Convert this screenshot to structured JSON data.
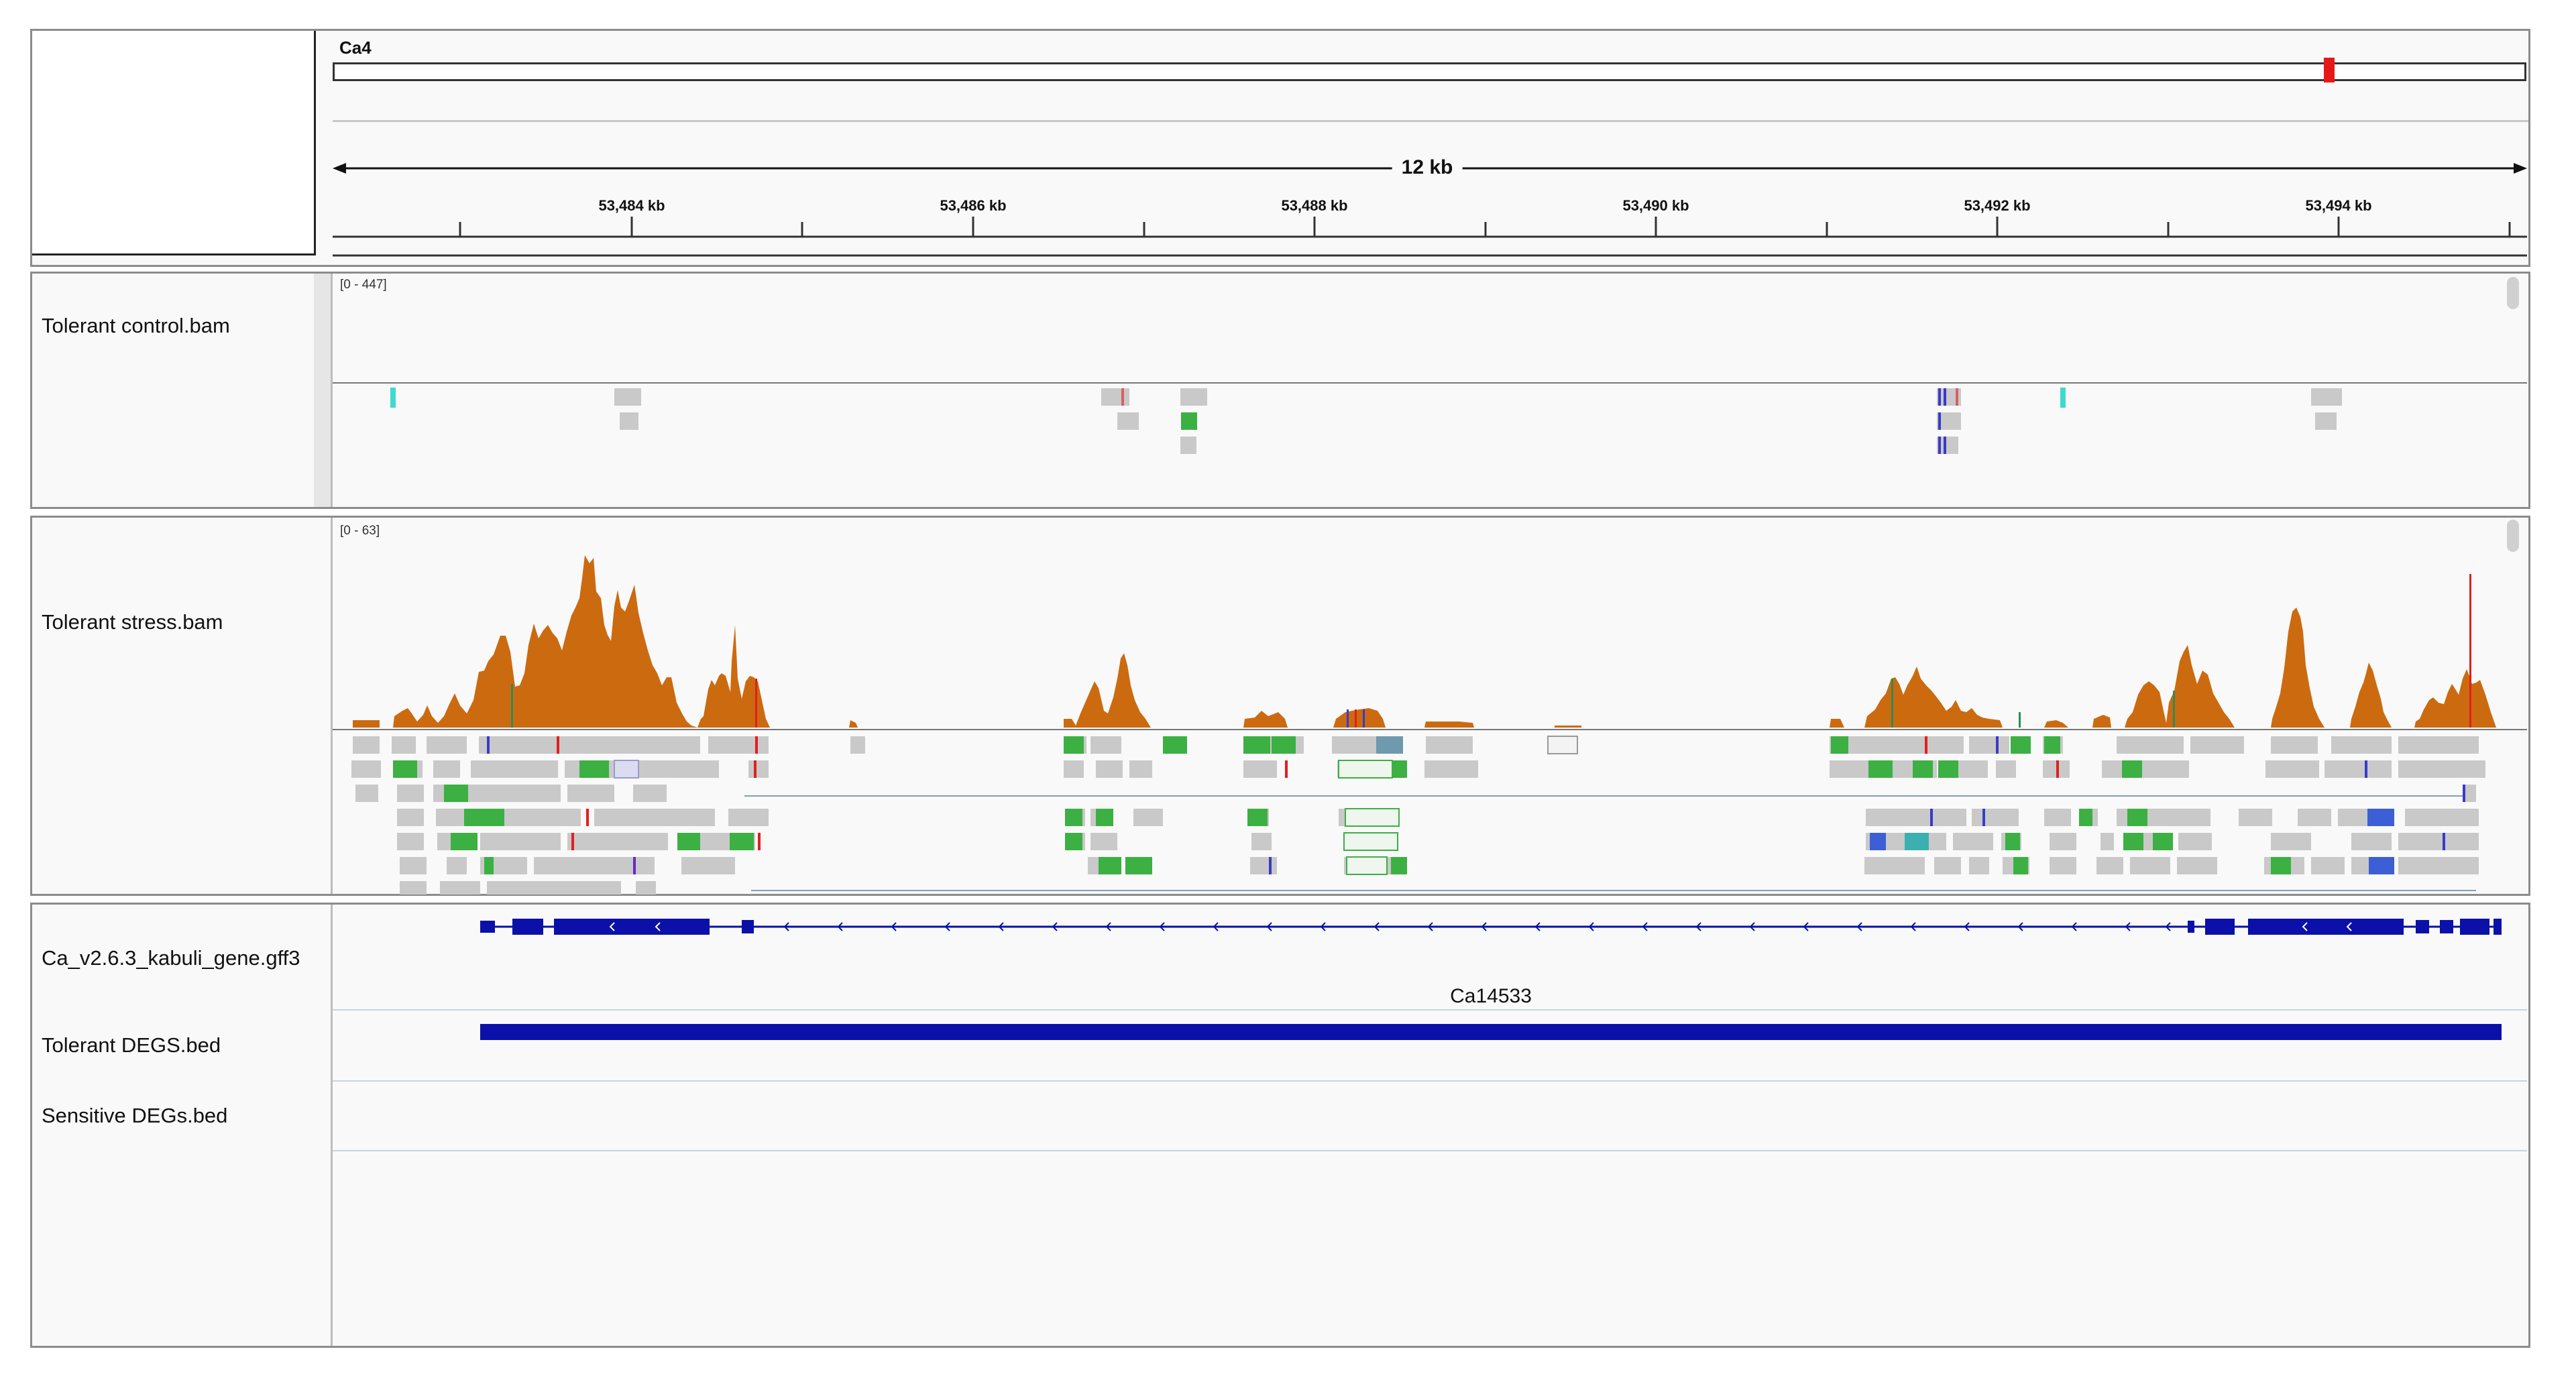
{
  "ruler": {
    "chromosome": "Ca4",
    "span_label": "12 kb",
    "ticks": [
      "53,484 kb",
      "53,486 kb",
      "53,488 kb",
      "53,490 kb",
      "53,492 kb",
      "53,494 kb"
    ]
  },
  "tracks": {
    "control_bam": {
      "name": "Tolerant control.bam",
      "range": "[0 - 447]"
    },
    "stress_bam": {
      "name": "Tolerant stress.bam",
      "range": "[0 - 63]"
    },
    "gene_gff": {
      "name": "Ca_v2.6.3_kabuli_gene.gff3",
      "feature_name": "Ca14533"
    },
    "tolerant_degs": {
      "name": "Tolerant DEGS.bed"
    },
    "sensitive_degs": {
      "name": "Sensitive DEGs.bed"
    }
  },
  "colors": {
    "coverage": "#cc6a10",
    "read_gray": "#c9c9c9",
    "read_green": "#3cb043",
    "gene_blue": "#0a10a8",
    "ideogram_marker": "#e61919"
  }
}
